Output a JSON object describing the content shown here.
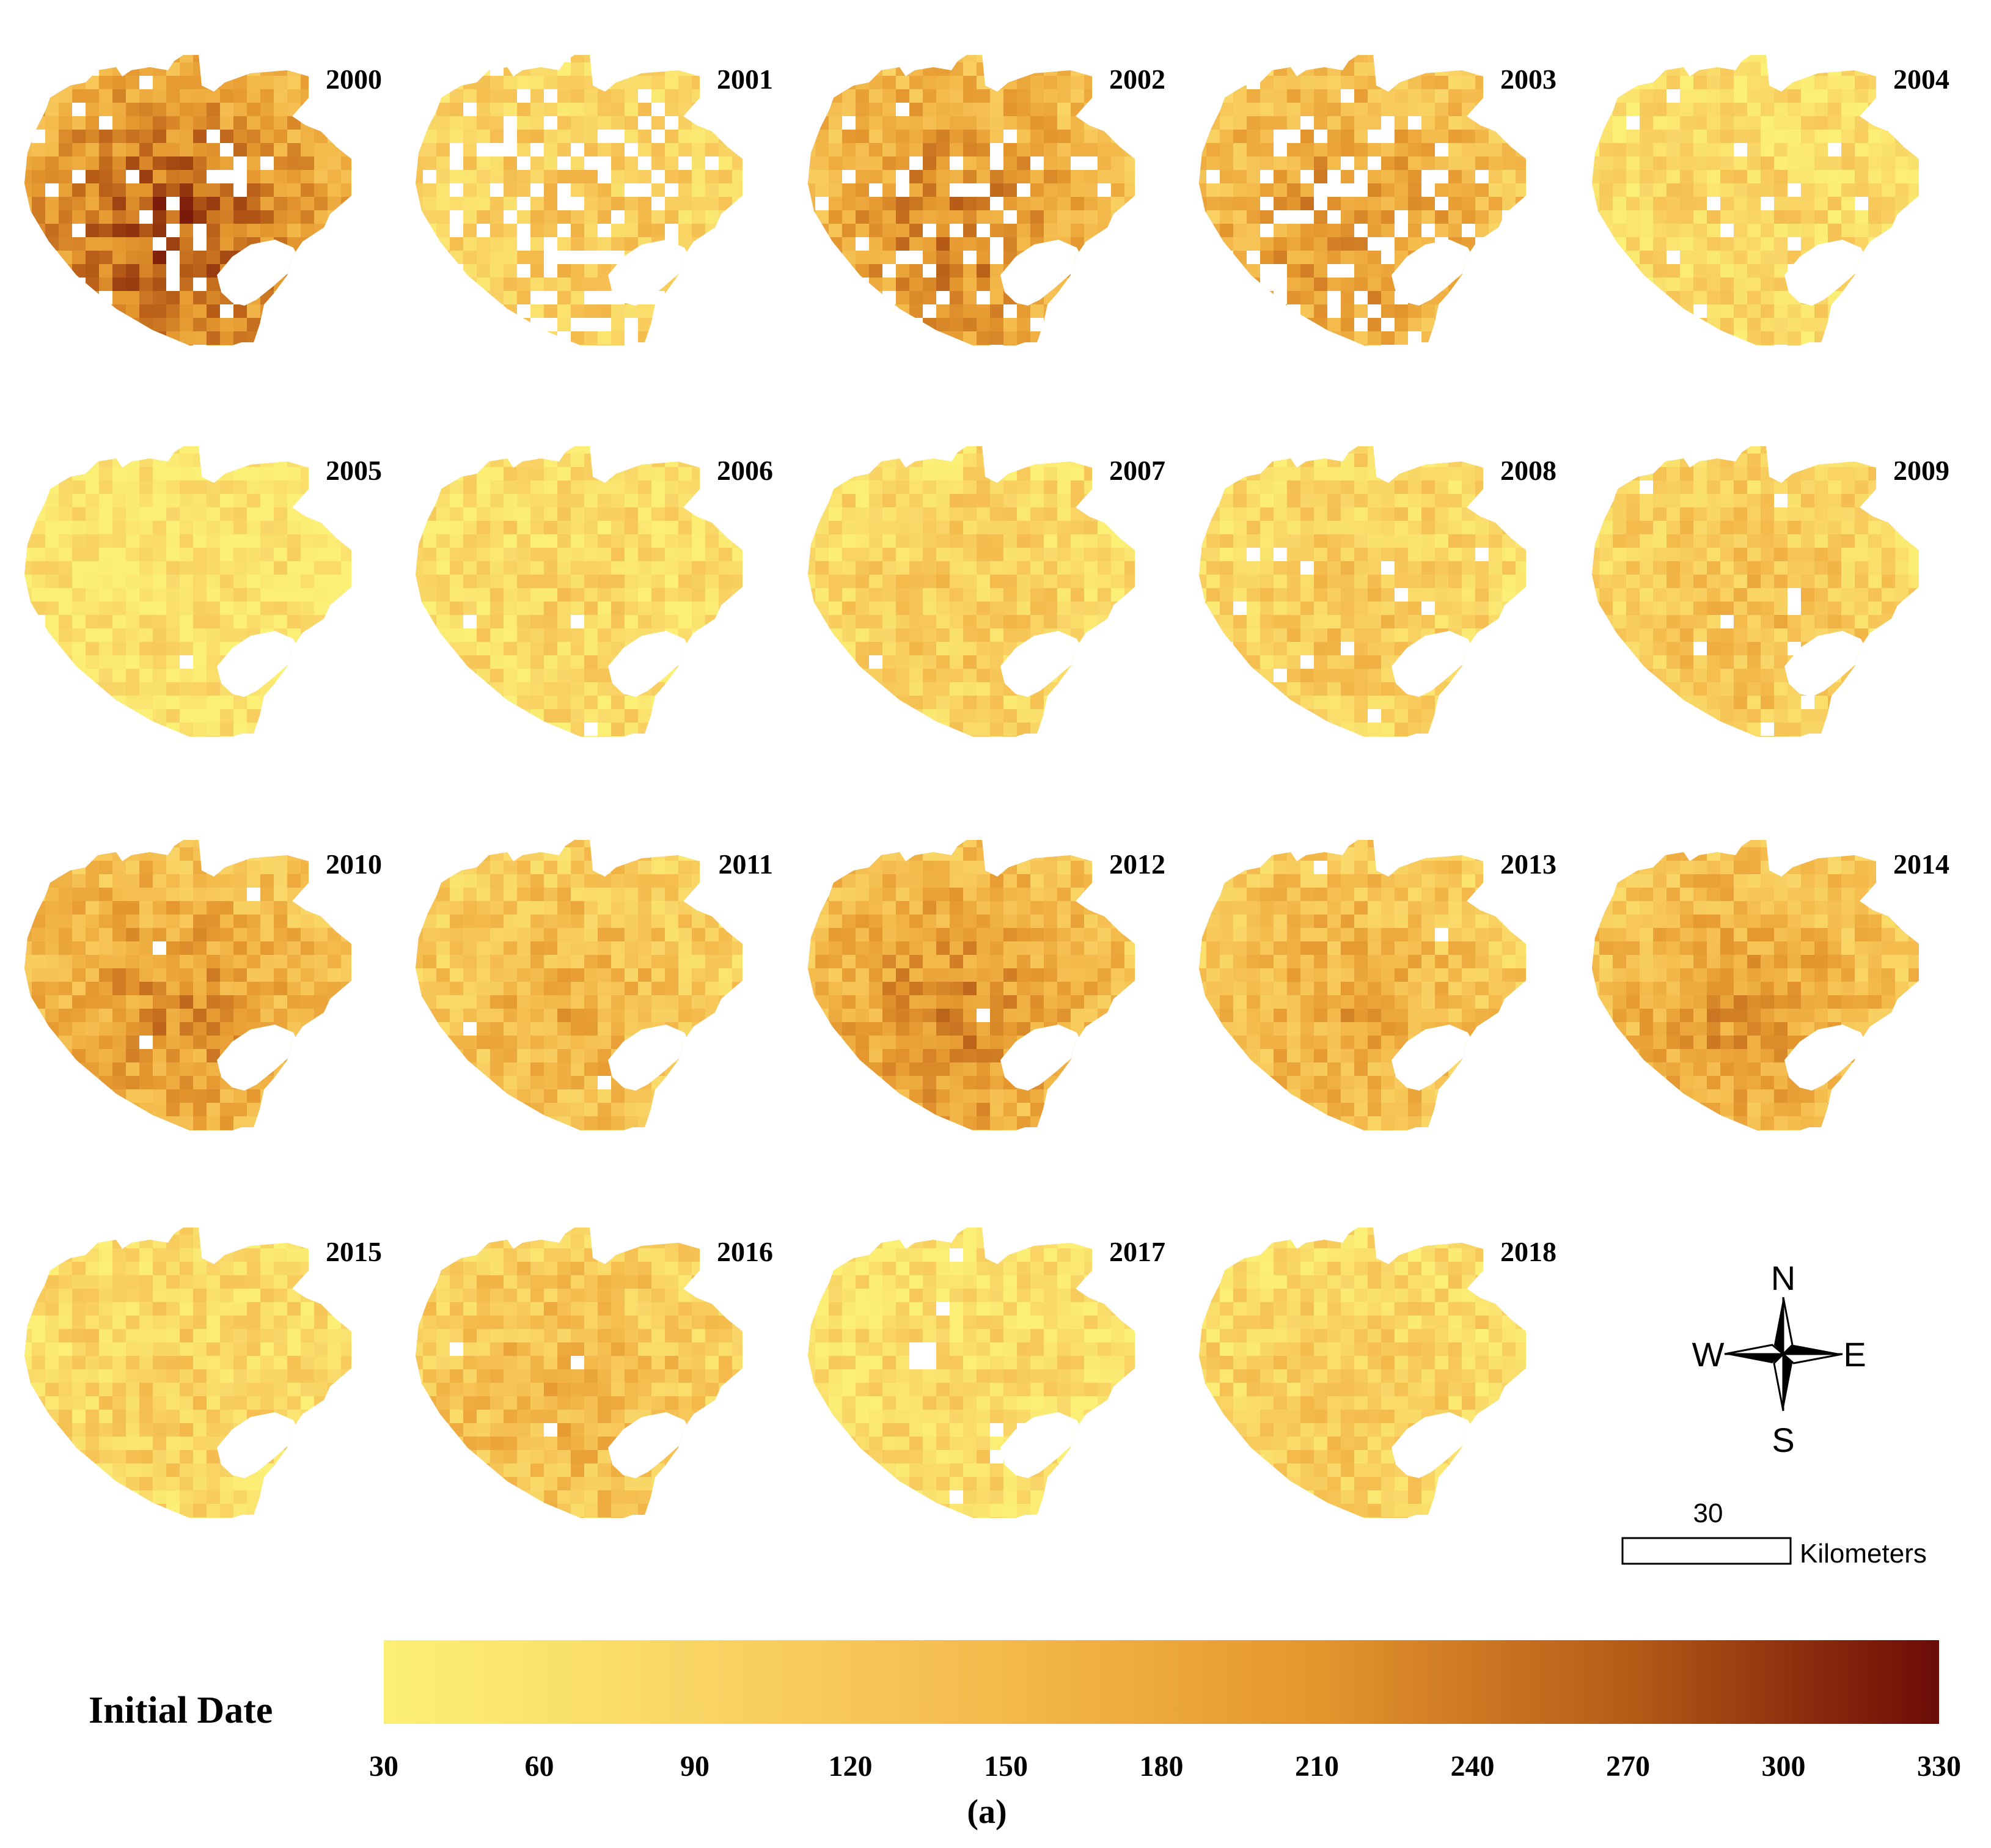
{
  "figure": {
    "caption": "(a)",
    "variable": "Initial Date",
    "panels": [
      {
        "year": "2000",
        "intensity": 0.82,
        "white": 0.1
      },
      {
        "year": "2001",
        "intensity": 0.32,
        "white": 0.3
      },
      {
        "year": "2002",
        "intensity": 0.66,
        "white": 0.18
      },
      {
        "year": "2003",
        "intensity": 0.6,
        "white": 0.26
      },
      {
        "year": "2004",
        "intensity": 0.22,
        "white": 0.06
      },
      {
        "year": "2005",
        "intensity": 0.12,
        "white": 0.02
      },
      {
        "year": "2006",
        "intensity": 0.2,
        "white": 0.01
      },
      {
        "year": "2007",
        "intensity": 0.28,
        "white": 0.01
      },
      {
        "year": "2008",
        "intensity": 0.3,
        "white": 0.04
      },
      {
        "year": "2009",
        "intensity": 0.36,
        "white": 0.03
      },
      {
        "year": "2010",
        "intensity": 0.6,
        "white": 0.01
      },
      {
        "year": "2011",
        "intensity": 0.44,
        "white": 0.01
      },
      {
        "year": "2012",
        "intensity": 0.62,
        "white": 0.01
      },
      {
        "year": "2013",
        "intensity": 0.48,
        "white": 0.01
      },
      {
        "year": "2014",
        "intensity": 0.56,
        "white": 0.01
      },
      {
        "year": "2015",
        "intensity": 0.24,
        "white": 0.0
      },
      {
        "year": "2016",
        "intensity": 0.42,
        "white": 0.01
      },
      {
        "year": "2017",
        "intensity": 0.18,
        "white": 0.01
      },
      {
        "year": "2018",
        "intensity": 0.28,
        "white": 0.01
      }
    ],
    "legend": {
      "title": "Initial Date",
      "ticks": [
        "30",
        "60",
        "90",
        "120",
        "150",
        "180",
        "210",
        "240",
        "270",
        "300",
        "330"
      ],
      "min": 30,
      "max": 330,
      "colors": [
        "#fcef76",
        "#f9d566",
        "#f4b94b",
        "#e4962e",
        "#b65b17",
        "#6b0b07"
      ]
    },
    "compass": {
      "north": "N",
      "south": "S",
      "east": "E",
      "west": "W"
    },
    "scale_bar": {
      "value": "30",
      "unit": "Kilometers"
    }
  }
}
